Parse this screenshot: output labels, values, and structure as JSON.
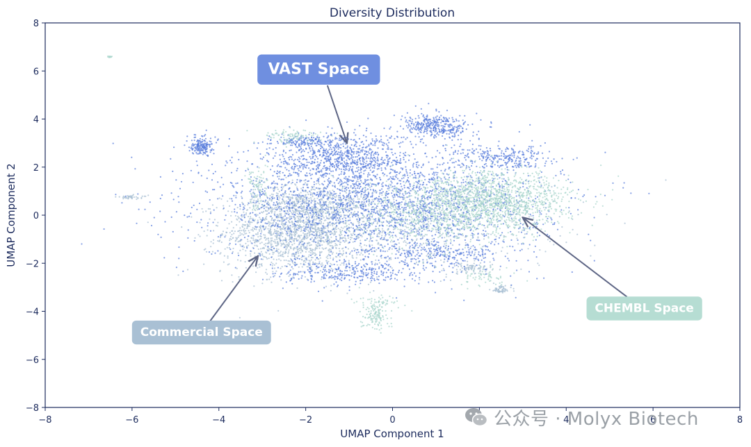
{
  "chart_data": {
    "type": "scatter",
    "title": "Diversity Distribution",
    "xlabel": "UMAP Component 1",
    "ylabel": "UMAP Component 2",
    "xlim": [
      -8,
      8
    ],
    "ylim": [
      -8,
      8
    ],
    "xticks": [
      "−8",
      "−6",
      "−4",
      "−2",
      "0",
      "2",
      "4",
      "6",
      "8"
    ],
    "yticks": [
      "−8",
      "−6",
      "−4",
      "−2",
      "0",
      "2",
      "4",
      "6",
      "8"
    ],
    "grid": false,
    "colors": {
      "vast": "#5b7fdc",
      "commercial": "#a9c0d4",
      "chembl": "#a9d6cc",
      "axis": "#1b2a5c",
      "arrow": "#5e6685"
    },
    "series": [
      {
        "key": "commercial",
        "color": "#a9c0d4",
        "clusters": [
          {
            "cx": -2.2,
            "cy": -0.7,
            "sx": 0.85,
            "sy": 0.85,
            "n": 1600
          },
          {
            "cx": -1.8,
            "cy": 0.5,
            "sx": 0.7,
            "sy": 0.45,
            "n": 400
          },
          {
            "cx": 0.5,
            "cy": -0.5,
            "sx": 1.6,
            "sy": 0.9,
            "n": 600
          },
          {
            "cx": 1.8,
            "cy": -2.2,
            "sx": 0.3,
            "sy": 0.12,
            "n": 80
          },
          {
            "cx": 2.5,
            "cy": -3.1,
            "sx": 0.12,
            "sy": 0.08,
            "n": 60
          },
          {
            "cx": -6.0,
            "cy": 0.75,
            "sx": 0.18,
            "sy": 0.04,
            "n": 40
          }
        ]
      },
      {
        "key": "vast",
        "color": "#5b7fdc",
        "clusters": [
          {
            "cx": -0.3,
            "cy": 0.5,
            "sx": 1.9,
            "sy": 1.15,
            "n": 2500
          },
          {
            "cx": -1.2,
            "cy": 2.4,
            "sx": 0.8,
            "sy": 0.5,
            "n": 700
          },
          {
            "cx": 1.0,
            "cy": 3.7,
            "sx": 0.4,
            "sy": 0.25,
            "n": 350
          },
          {
            "cx": 2.6,
            "cy": 2.4,
            "sx": 0.5,
            "sy": 0.25,
            "n": 250
          },
          {
            "cx": -1.0,
            "cy": -2.4,
            "sx": 0.8,
            "sy": 0.25,
            "n": 300
          },
          {
            "cx": -4.4,
            "cy": 2.9,
            "sx": 0.12,
            "sy": 0.2,
            "n": 180
          },
          {
            "cx": -2.0,
            "cy": 3.1,
            "sx": 0.35,
            "sy": 0.12,
            "n": 120
          },
          {
            "cx": 1.2,
            "cy": -1.6,
            "sx": 0.8,
            "sy": 0.3,
            "n": 250
          }
        ]
      },
      {
        "key": "chembl",
        "color": "#a9d6cc",
        "clusters": [
          {
            "cx": 2.3,
            "cy": 0.6,
            "sx": 0.9,
            "sy": 0.6,
            "n": 1400
          },
          {
            "cx": 1.0,
            "cy": 0.0,
            "sx": 1.0,
            "sy": 0.7,
            "n": 500
          },
          {
            "cx": -0.4,
            "cy": -4.2,
            "sx": 0.15,
            "sy": 0.3,
            "n": 120
          },
          {
            "cx": -2.3,
            "cy": 3.3,
            "sx": 0.35,
            "sy": 0.15,
            "n": 90
          },
          {
            "cx": -3.1,
            "cy": 1.2,
            "sx": 0.12,
            "sy": 0.5,
            "n": 80
          },
          {
            "cx": 2.2,
            "cy": -2.6,
            "sx": 0.3,
            "sy": 0.2,
            "n": 60
          },
          {
            "cx": -0.3,
            "cy": -3.6,
            "sx": 0.3,
            "sy": 0.2,
            "n": 50
          },
          {
            "cx": -6.5,
            "cy": 6.6,
            "sx": 0.03,
            "sy": 0.02,
            "n": 12
          }
        ]
      }
    ],
    "annotations": [
      {
        "key": "vast",
        "text": "VAST Space",
        "label_at": [
          -1.7,
          6.1
        ],
        "arrow_to": [
          -1.05,
          3.0
        ],
        "arrow_from": [
          -1.5,
          5.4
        ],
        "color": "#6f8fe0"
      },
      {
        "key": "commercial",
        "text": "Commercial Space",
        "label_at": [
          -4.4,
          -4.85
        ],
        "arrow_to": [
          -3.1,
          -1.7
        ],
        "arrow_from": [
          -4.2,
          -4.4
        ],
        "color": "#a9c0d4"
      },
      {
        "key": "chembl",
        "text": "CHEMBL Space",
        "label_at": [
          5.8,
          -3.85
        ],
        "arrow_to": [
          3.0,
          -0.1
        ],
        "arrow_from": [
          5.4,
          -3.4
        ],
        "color": "#b6ddd3"
      }
    ]
  },
  "watermark": {
    "text": "公众号 · Molyx Biotech",
    "icon": "wechat-icon"
  }
}
